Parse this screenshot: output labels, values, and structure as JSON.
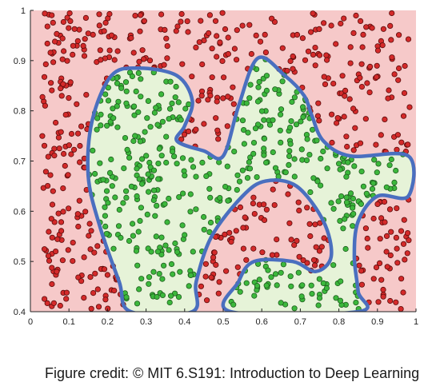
{
  "caption": "Figure credit: © MIT 6.S191: Introduction to Deep Learning",
  "chart_data": {
    "type": "scatter",
    "title": "",
    "xlabel": "",
    "ylabel": "",
    "xlim": [
      0,
      1
    ],
    "ylim": [
      0.4,
      1
    ],
    "xticks": [
      "0",
      "0.1",
      "0.2",
      "0.3",
      "0.4",
      "0.5",
      "0.6",
      "0.7",
      "0.8",
      "0.9",
      "1"
    ],
    "yticks": [
      "0.4",
      "0.5",
      "0.6",
      "0.7",
      "0.8",
      "0.9",
      "1"
    ],
    "grid": false,
    "legend": "none",
    "colors": {
      "class_outside": "#d42a2a",
      "class_inside": "#3cb83c",
      "region_outside": "#f6c9c9",
      "region_inside": "#e6f3d8",
      "boundary": "#4a6fbf"
    },
    "decision_boundary": [
      [
        0.26,
        0.4
      ],
      [
        0.23,
        0.46
      ],
      [
        0.18,
        0.57
      ],
      [
        0.15,
        0.67
      ],
      [
        0.16,
        0.78
      ],
      [
        0.21,
        0.87
      ],
      [
        0.28,
        0.885
      ],
      [
        0.38,
        0.87
      ],
      [
        0.42,
        0.82
      ],
      [
        0.4,
        0.77
      ],
      [
        0.38,
        0.74
      ],
      [
        0.45,
        0.72
      ],
      [
        0.5,
        0.71
      ],
      [
        0.54,
        0.81
      ],
      [
        0.59,
        0.905
      ],
      [
        0.66,
        0.87
      ],
      [
        0.71,
        0.83
      ],
      [
        0.73,
        0.79
      ],
      [
        0.76,
        0.74
      ],
      [
        0.83,
        0.71
      ],
      [
        0.98,
        0.71
      ],
      [
        0.98,
        0.63
      ],
      [
        0.9,
        0.63
      ],
      [
        0.85,
        0.58
      ],
      [
        0.84,
        0.51
      ],
      [
        0.85,
        0.44
      ],
      [
        0.85,
        0.4
      ],
      [
        0.52,
        0.4
      ],
      [
        0.54,
        0.46
      ],
      [
        0.58,
        0.5
      ],
      [
        0.68,
        0.5
      ],
      [
        0.74,
        0.48
      ],
      [
        0.78,
        0.51
      ],
      [
        0.76,
        0.58
      ],
      [
        0.69,
        0.65
      ],
      [
        0.61,
        0.66
      ],
      [
        0.55,
        0.63
      ],
      [
        0.47,
        0.55
      ],
      [
        0.43,
        0.46
      ],
      [
        0.42,
        0.4
      ]
    ]
  }
}
